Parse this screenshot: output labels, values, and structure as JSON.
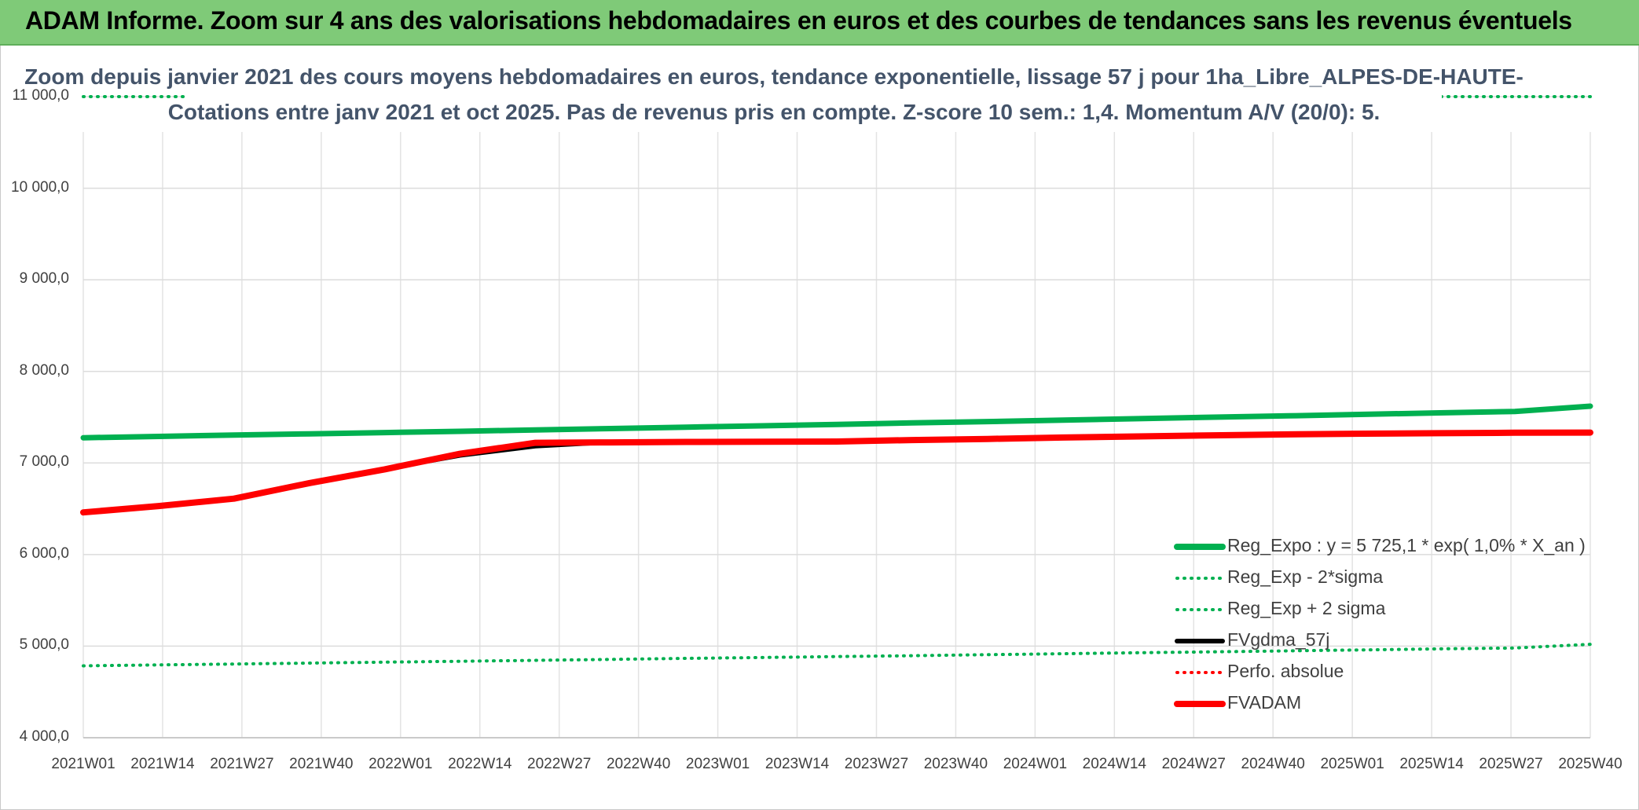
{
  "banner": {
    "title": "ADAM Informe. Zoom sur 4 ans des valorisations hebdomadaires en euros et des courbes de tendances sans les revenus éventuels"
  },
  "chart_data": {
    "type": "line",
    "title_line1": "Zoom depuis janvier 2021 des cours moyens hebdomadaires en euros, tendance exponentielle, lissage 57 j pour 1ha_Libre_ALPES-DE-HAUTE-",
    "title_line2": "Cotations entre janv 2021 et oct 2025. Pas de revenus pris en compte. Z-score 10 sem.: 1,4. Momentum A/V (20/0): 5.",
    "ylim": [
      4000,
      11000
    ],
    "y_ticks": [
      "4 000,0",
      "5 000,0",
      "6 000,0",
      "7 000,0",
      "8 000,0",
      "9 000,0",
      "10 000,0",
      "11 000,0"
    ],
    "x_ticks": [
      "2021W01",
      "2021W14",
      "2021W27",
      "2021W40",
      "2022W01",
      "2022W14",
      "2022W27",
      "2022W40",
      "2023W01",
      "2023W14",
      "2023W27",
      "2023W40",
      "2024W01",
      "2024W14",
      "2024W27",
      "2024W40",
      "2025W01",
      "2025W14",
      "2025W27",
      "2025W40"
    ],
    "grid": true,
    "legend_position": "bottom-right",
    "series": [
      {
        "name": "Reg_Expo : y = 5 725,1 * exp( 1,0% *  X_an )",
        "color": "#00b050",
        "style": "solid",
        "values": [
          7275,
          7290,
          7305,
          7318,
          7332,
          7346,
          7361,
          7376,
          7391,
          7406,
          7421,
          7437,
          7452,
          7468,
          7484,
          7500,
          7515,
          7531,
          7547,
          7563,
          7620
        ]
      },
      {
        "name": "Reg_Exp - 2*sigma",
        "color": "#00b050",
        "style": "dotted",
        "values": [
          4785,
          4795,
          4805,
          4815,
          4825,
          4835,
          4845,
          4855,
          4866,
          4876,
          4886,
          4896,
          4907,
          4917,
          4928,
          4938,
          4949,
          4959,
          4970,
          4980,
          5020
        ]
      },
      {
        "name": "Reg_Exp + 2 sigma",
        "color": "#00b050",
        "style": "dotted",
        "values": [
          11000,
          11000,
          11000,
          11000,
          11000,
          11000,
          11000,
          11000,
          11000,
          11000,
          11000,
          11000,
          11000,
          11000,
          11000,
          11000,
          11000,
          11000,
          11000,
          11000,
          11000
        ]
      },
      {
        "name": "FVgdma_57j",
        "color": "#000000",
        "style": "solid",
        "values": [
          6460,
          6530,
          6620,
          6780,
          6930,
          7080,
          7180,
          7225,
          7230,
          7232,
          7234,
          7250,
          7262,
          7278,
          7290,
          7302,
          7312,
          7320,
          7325,
          7330,
          7332
        ]
      },
      {
        "name": "Perfo. absolue",
        "color": "#ff0000",
        "style": "dotted",
        "values": []
      },
      {
        "name": "FVADAM",
        "color": "#ff0000",
        "style": "solid",
        "values": [
          6460,
          6530,
          6610,
          6780,
          6930,
          7100,
          7220,
          7225,
          7230,
          7232,
          7234,
          7250,
          7262,
          7278,
          7290,
          7302,
          7312,
          7320,
          7325,
          7330,
          7332
        ]
      }
    ]
  }
}
